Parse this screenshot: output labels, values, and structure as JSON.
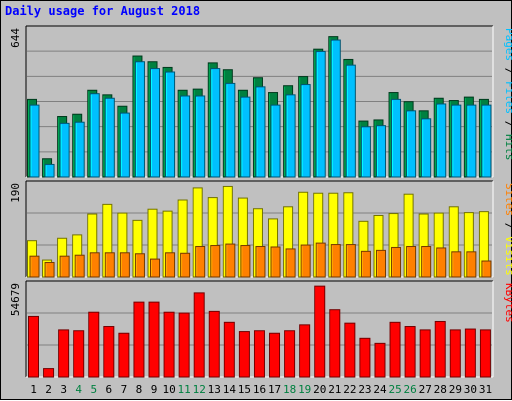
{
  "chart_data": {
    "type": "bar",
    "title": "Daily usage for August 2018",
    "days": [
      "1",
      "2",
      "3",
      "4",
      "5",
      "6",
      "7",
      "8",
      "9",
      "10",
      "11",
      "12",
      "13",
      "14",
      "15",
      "16",
      "17",
      "18",
      "19",
      "20",
      "21",
      "22",
      "23",
      "24",
      "25",
      "26",
      "27",
      "28",
      "29",
      "30",
      "31"
    ],
    "weekend_days": [
      "4",
      "5",
      "11",
      "12",
      "18",
      "19",
      "25",
      "26"
    ],
    "colors": {
      "background": "#c0c0c0",
      "title": "#0000ff",
      "hits": "#008040",
      "files": "#00c0ff",
      "pages": "#00c0ff",
      "visits": "#ffff00",
      "sites": "#ff8000",
      "kbytes": "#ff0000",
      "weekday_label": "#000000",
      "weekend_label": "#008040"
    },
    "panels": [
      {
        "name": "hits-files-pages",
        "max_label": "644",
        "ymax": 644,
        "legend": [
          {
            "text": "Pages",
            "color": "#00c0ff"
          },
          {
            "text": " / ",
            "color": "#000000"
          },
          {
            "text": "Files",
            "color": "#00c0ff"
          },
          {
            "text": " / ",
            "color": "#000000"
          },
          {
            "text": "Hits",
            "color": "#008040"
          }
        ],
        "series": [
          {
            "name": "Hits",
            "color": "#008040",
            "values": [
              340,
              80,
              265,
              275,
              380,
              360,
              310,
              530,
              505,
              480,
              380,
              385,
              500,
              470,
              380,
              435,
              370,
              400,
              440,
              560,
              615,
              515,
              245,
              250,
              370,
              330,
              290,
              345,
              335,
              350,
              340
            ]
          },
          {
            "name": "Files",
            "color": "#00c0ff",
            "values": [
              315,
              55,
              235,
              240,
              365,
              345,
              280,
              505,
              475,
              460,
              355,
              355,
              475,
              410,
              350,
              395,
              315,
              360,
              405,
              550,
              600,
              490,
              220,
              225,
              340,
              290,
              255,
              320,
              315,
              315,
              315
            ]
          }
        ]
      },
      {
        "name": "visits-sites",
        "max_label": "190",
        "ymax": 190,
        "legend": [
          {
            "text": "Sites",
            "color": "#ff8000"
          },
          {
            "text": " / ",
            "color": "#000000"
          },
          {
            "text": "Visits",
            "color": "#ffff00"
          }
        ],
        "series": [
          {
            "name": "Visits",
            "color": "#ffff00",
            "values": [
              75,
              35,
              80,
              87,
              130,
              150,
              132,
              117,
              140,
              136,
              159,
              184,
              164,
              187,
              163,
              141,
              120,
              145,
              175,
              173,
              173,
              174,
              115,
              127,
              131,
              171,
              130,
              132,
              145,
              133,
              135
            ]
          },
          {
            "name": "Sites",
            "color": "#ff8000",
            "values": [
              43,
              30,
              43,
              45,
              50,
              50,
              50,
              48,
              37,
              50,
              49,
              63,
              65,
              68,
              65,
              63,
              62,
              58,
              66,
              70,
              67,
              67,
              53,
              55,
              61,
              63,
              63,
              60,
              52,
              52,
              33
            ]
          }
        ]
      },
      {
        "name": "kbytes",
        "max_label": "54679",
        "ymax": 54679,
        "legend": [
          {
            "text": "KBytes",
            "color": "#ff0000"
          }
        ],
        "series": [
          {
            "name": "KBytes",
            "color": "#ff0000",
            "values": [
              36000,
              5000,
              28000,
              27500,
              38500,
              30000,
              26000,
              44500,
              44500,
              38500,
              38000,
              50000,
              39000,
              32500,
              27000,
              27500,
              26000,
              27500,
              31000,
              54000,
              40000,
              32000,
              23000,
              20000,
              32500,
              30000,
              28000,
              33000,
              28000,
              28500,
              28000
            ]
          }
        ]
      }
    ]
  }
}
